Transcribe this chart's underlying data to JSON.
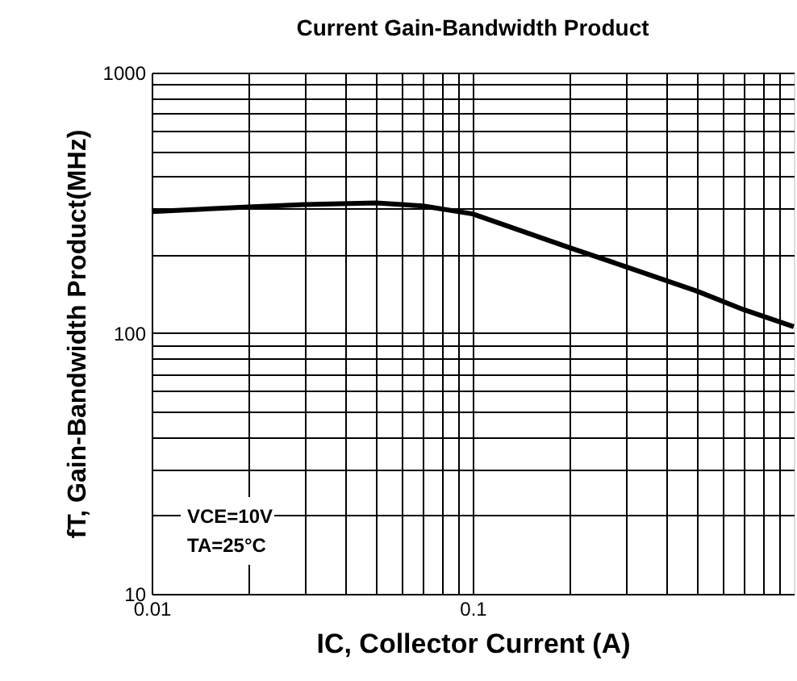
{
  "chart_data": {
    "type": "line",
    "title": "Current Gain-Bandwidth Product",
    "xlabel": "IC, Collector Current (A)",
    "ylabel": "fT, Gain-Bandwidth Product(MHz)",
    "x": [
      0.01,
      0.02,
      0.03,
      0.05,
      0.07,
      0.1,
      0.2,
      0.3,
      0.5,
      0.7,
      1
    ],
    "series": [
      {
        "color": "#000000",
        "values": [
          293,
          305,
          312,
          316,
          308,
          287,
          213,
          180,
          145,
          123,
          106
        ]
      }
    ],
    "log": "xy",
    "xlim": [
      0.01,
      1
    ],
    "ylim": [
      10,
      1000
    ],
    "xticks": [
      0.01,
      {
        "value": 0.02,
        "label": null
      },
      {
        "value": 0.03,
        "label": null
      },
      {
        "value": 0.04,
        "label": null
      },
      {
        "value": 0.05,
        "label": null
      },
      {
        "value": 0.06,
        "label": null
      },
      {
        "value": 0.07,
        "label": null
      },
      {
        "value": 0.08,
        "label": null
      },
      {
        "value": 0.09,
        "label": null
      },
      0.1,
      {
        "value": 0.2,
        "label": null
      },
      {
        "value": 0.3,
        "label": null
      },
      {
        "value": 0.4,
        "label": null
      },
      {
        "value": 0.5,
        "label": null
      },
      {
        "value": 0.6,
        "label": null
      },
      {
        "value": 0.7,
        "label": null
      },
      {
        "value": 0.8,
        "label": null
      },
      {
        "value": 0.9,
        "label": null
      }
    ],
    "yticks": [
      10,
      {
        "value": 20,
        "label": null
      },
      {
        "value": 30,
        "label": null
      },
      {
        "value": 40,
        "label": null
      },
      {
        "value": 50,
        "label": null
      },
      {
        "value": 60,
        "label": null
      },
      {
        "value": 70,
        "label": null
      },
      {
        "value": 80,
        "label": null
      },
      {
        "value": 90,
        "label": null
      },
      100,
      {
        "value": 200,
        "label": null
      },
      {
        "value": 300,
        "label": null
      },
      {
        "value": 400,
        "label": null
      },
      {
        "value": 500,
        "label": null
      },
      {
        "value": 600,
        "label": null
      },
      {
        "value": 700,
        "label": null
      },
      {
        "value": 800,
        "label": null
      },
      {
        "value": 900,
        "label": null
      },
      1000
    ],
    "grid": true,
    "marker": "none",
    "line_style": "solid",
    "annotations": [
      "VCE=10V",
      "TA=25°C"
    ]
  }
}
